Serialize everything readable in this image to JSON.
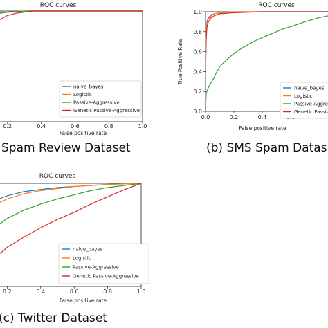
{
  "colors": {
    "naive_bayes": "#1f77b4",
    "logistic": "#ff7f0e",
    "passive_aggressive": "#2ca02c",
    "genetic_passive_aggressive": "#d62728"
  },
  "captions": {
    "a": "Spam Review Dataset",
    "b": "(b) SMS Spam Datas",
    "c": "(c) Twitter Dataset"
  },
  "chart_data": [
    {
      "type": "line",
      "title": "ROC curves",
      "xlabel": "False positive rate",
      "ylabel": "",
      "xlim": [
        0,
        1
      ],
      "ylim": [
        0,
        1
      ],
      "xticks": [
        "0.2",
        "0.4",
        "0.6",
        "0.8",
        "1.0"
      ],
      "yticks": [],
      "legend_position": "bottom-right",
      "grid": false,
      "series": [
        {
          "name": "naive_bayes",
          "x": [
            0,
            0.005,
            0.01,
            0.02,
            0.04,
            0.06,
            0.1,
            0.15,
            0.2,
            0.3,
            1.0
          ],
          "y": [
            0,
            0.5,
            0.65,
            0.78,
            0.86,
            0.92,
            0.96,
            0.98,
            0.99,
            1.0,
            1.0
          ]
        },
        {
          "name": "Logistic",
          "x": [
            0,
            0.005,
            0.01,
            0.02,
            0.04,
            0.06,
            0.1,
            0.15,
            0.2,
            0.3,
            1.0
          ],
          "y": [
            0,
            0.45,
            0.6,
            0.74,
            0.84,
            0.9,
            0.95,
            0.98,
            0.99,
            1.0,
            1.0
          ]
        },
        {
          "name": "Passive-Aggressive",
          "x": [
            0,
            0.005,
            0.01,
            0.02,
            0.04,
            0.06,
            0.1,
            0.15,
            0.2,
            0.3,
            1.0
          ],
          "y": [
            0,
            0.48,
            0.62,
            0.76,
            0.85,
            0.91,
            0.95,
            0.98,
            0.99,
            1.0,
            1.0
          ]
        },
        {
          "name": "Genetic Passive-Aggressive",
          "x": [
            0,
            0.005,
            0.01,
            0.02,
            0.04,
            0.06,
            0.08,
            0.1,
            0.15,
            0.2,
            0.25,
            0.35,
            1.0
          ],
          "y": [
            0,
            0.3,
            0.45,
            0.58,
            0.66,
            0.72,
            0.78,
            0.84,
            0.92,
            0.96,
            0.98,
            1.0,
            1.0
          ]
        }
      ]
    },
    {
      "type": "line",
      "title": "ROC curves",
      "xlabel": "False positive rate",
      "ylabel": "True Positive Rate",
      "xlim": [
        0,
        1
      ],
      "ylim": [
        0,
        1
      ],
      "xticks": [
        "0.0",
        "0.2",
        "0.4",
        "0.6"
      ],
      "yticks": [
        "0.0",
        "0.2",
        "0.4",
        "0.6",
        "0.8",
        "1.0"
      ],
      "legend_position": "bottom-right",
      "grid": false,
      "series": [
        {
          "name": "naive_bayes",
          "x": [
            0,
            0.002,
            0.005,
            0.01,
            0.02,
            0.04,
            0.06,
            0.1,
            0.2,
            0.4,
            1.0
          ],
          "y": [
            0,
            0.6,
            0.8,
            0.9,
            0.94,
            0.97,
            0.98,
            0.99,
            1.0,
            1.0,
            1.0
          ]
        },
        {
          "name": "Logistic",
          "x": [
            0,
            0.002,
            0.005,
            0.01,
            0.02,
            0.04,
            0.06,
            0.1,
            0.2,
            0.4,
            1.0
          ],
          "y": [
            0,
            0.55,
            0.78,
            0.88,
            0.93,
            0.96,
            0.98,
            0.99,
            1.0,
            1.0,
            1.0
          ]
        },
        {
          "name": "Passive-Aggressive",
          "x": [
            0,
            0.005,
            0.01,
            0.02,
            0.04,
            0.06,
            0.08,
            0.1,
            0.15,
            0.2,
            0.25,
            0.3,
            0.35,
            0.4,
            0.45,
            0.5,
            0.55,
            0.6,
            0.7,
            0.8,
            0.9,
            1.0
          ],
          "y": [
            0,
            0.18,
            0.2,
            0.24,
            0.29,
            0.34,
            0.4,
            0.45,
            0.52,
            0.58,
            0.63,
            0.67,
            0.71,
            0.74,
            0.77,
            0.8,
            0.83,
            0.85,
            0.9,
            0.94,
            0.97,
            1.0
          ]
        },
        {
          "name": "Genetic Passive-Aggressive",
          "x": [
            0,
            0.002,
            0.005,
            0.01,
            0.02,
            0.04,
            0.06,
            0.1,
            0.2,
            0.4,
            1.0
          ],
          "y": [
            0,
            0.5,
            0.72,
            0.84,
            0.9,
            0.94,
            0.96,
            0.98,
            0.99,
            1.0,
            1.0
          ]
        }
      ]
    },
    {
      "type": "line",
      "title": "ROC curves",
      "xlabel": "False positive rate",
      "ylabel": "",
      "xlim": [
        0,
        1
      ],
      "ylim": [
        0,
        1
      ],
      "xticks": [
        "0.2",
        "0.4",
        "0.6",
        "0.8",
        "1.0"
      ],
      "yticks": [],
      "legend_position": "bottom-right",
      "grid": false,
      "series": [
        {
          "name": "naive_bayes",
          "x": [
            0,
            0.01,
            0.02,
            0.05,
            0.1,
            0.15,
            0.2,
            0.3,
            0.4,
            0.5,
            0.6,
            0.7,
            0.8,
            0.9,
            1.0
          ],
          "y": [
            0,
            0.5,
            0.6,
            0.72,
            0.8,
            0.85,
            0.88,
            0.92,
            0.94,
            0.96,
            0.97,
            0.98,
            0.99,
            0.995,
            1.0
          ]
        },
        {
          "name": "Logistic",
          "x": [
            0,
            0.01,
            0.02,
            0.05,
            0.1,
            0.15,
            0.2,
            0.3,
            0.4,
            0.5,
            0.6,
            0.7,
            0.8,
            0.9,
            1.0
          ],
          "y": [
            0,
            0.45,
            0.55,
            0.66,
            0.75,
            0.81,
            0.85,
            0.9,
            0.93,
            0.95,
            0.97,
            0.98,
            0.99,
            0.995,
            1.0
          ]
        },
        {
          "name": "Passive-Aggressive",
          "x": [
            0,
            0.01,
            0.02,
            0.05,
            0.1,
            0.15,
            0.2,
            0.3,
            0.4,
            0.5,
            0.6,
            0.7,
            0.8,
            0.9,
            1.0
          ],
          "y": [
            0,
            0.3,
            0.36,
            0.45,
            0.53,
            0.6,
            0.66,
            0.74,
            0.8,
            0.85,
            0.89,
            0.93,
            0.96,
            0.98,
            1.0
          ]
        },
        {
          "name": "Genetic Passive-Aggressive",
          "x": [
            0,
            0.02,
            0.05,
            0.1,
            0.2,
            0.3,
            0.4,
            0.5,
            0.6,
            0.7,
            0.8,
            0.9,
            1.0
          ],
          "y": [
            0,
            0.05,
            0.12,
            0.24,
            0.38,
            0.48,
            0.57,
            0.65,
            0.72,
            0.8,
            0.87,
            0.94,
            1.0
          ]
        }
      ]
    }
  ]
}
